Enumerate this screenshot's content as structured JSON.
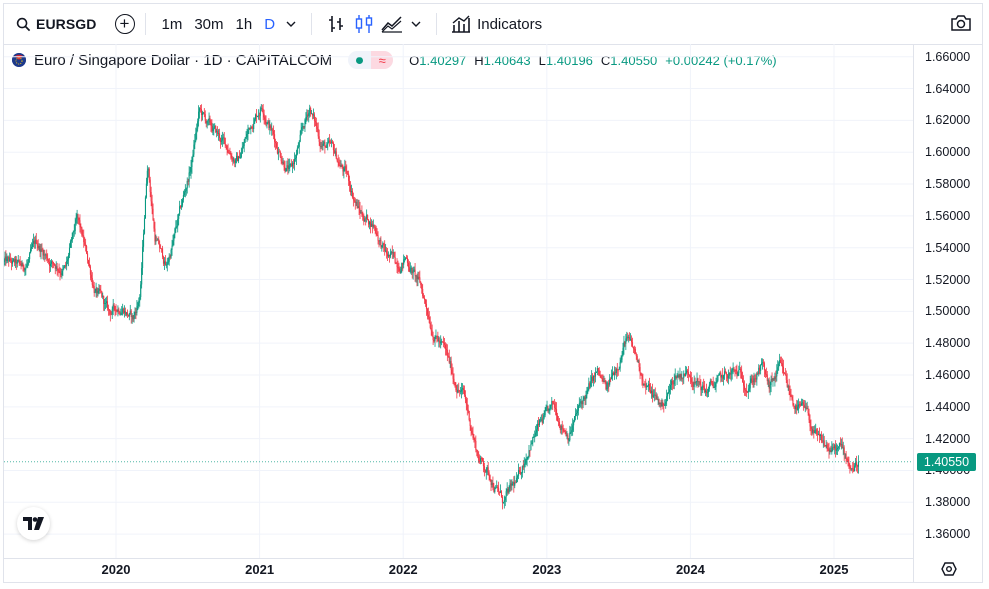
{
  "toolbar": {
    "symbol": "EURSGD",
    "intervals": [
      "1m",
      "30m",
      "1h",
      "D"
    ],
    "active_interval": "D",
    "indicators_label": "Indicators"
  },
  "legend": {
    "title": "Euro / Singapore Dollar · 1D · CAPITALCOM",
    "open_label": "O",
    "open": "1.40297",
    "high_label": "H",
    "high": "1.40643",
    "low_label": "L",
    "low": "1.40196",
    "close_label": "C",
    "close": "1.40550",
    "change": "+0.00242 (+0.17%)"
  },
  "last_price_tag": "1.40550",
  "colors": {
    "up": "#089981",
    "down": "#f23645",
    "grid": "#f0f3fa",
    "accent": "#2962ff"
  },
  "chart_data": {
    "type": "candlestick",
    "interval": "1D",
    "x_ticks": [
      "2020",
      "2021",
      "2022",
      "2023",
      "2024",
      "2025"
    ],
    "y_ticks": [
      "1.36000",
      "1.38000",
      "1.40000",
      "1.42000",
      "1.44000",
      "1.46000",
      "1.48000",
      "1.50000",
      "1.52000",
      "1.54000",
      "1.56000",
      "1.58000",
      "1.60000",
      "1.62000",
      "1.64000",
      "1.66000"
    ],
    "ylim": [
      1.345,
      1.668
    ],
    "xlim": [
      2019.22,
      2025.55
    ],
    "closes": [
      [
        2019.22,
        1.531
      ],
      [
        2019.35,
        1.525
      ],
      [
        2019.45,
        1.541
      ],
      [
        2019.55,
        1.532
      ],
      [
        2019.65,
        1.527
      ],
      [
        2019.73,
        1.555
      ],
      [
        2019.85,
        1.515
      ],
      [
        2019.95,
        1.497
      ],
      [
        2020.05,
        1.505
      ],
      [
        2020.12,
        1.495
      ],
      [
        2020.17,
        1.512
      ],
      [
        2020.22,
        1.595
      ],
      [
        2020.27,
        1.548
      ],
      [
        2020.35,
        1.527
      ],
      [
        2020.45,
        1.562
      ],
      [
        2020.52,
        1.59
      ],
      [
        2020.58,
        1.625
      ],
      [
        2020.65,
        1.615
      ],
      [
        2020.75,
        1.605
      ],
      [
        2020.85,
        1.595
      ],
      [
        2020.95,
        1.62
      ],
      [
        2021.02,
        1.632
      ],
      [
        2021.12,
        1.605
      ],
      [
        2021.22,
        1.588
      ],
      [
        2021.28,
        1.605
      ],
      [
        2021.35,
        1.628
      ],
      [
        2021.42,
        1.608
      ],
      [
        2021.5,
        1.6
      ],
      [
        2021.6,
        1.586
      ],
      [
        2021.7,
        1.562
      ],
      [
        2021.8,
        1.555
      ],
      [
        2021.88,
        1.535
      ],
      [
        2021.95,
        1.53
      ],
      [
        2022.02,
        1.535
      ],
      [
        2022.12,
        1.515
      ],
      [
        2022.2,
        1.492
      ],
      [
        2022.28,
        1.477
      ],
      [
        2022.35,
        1.458
      ],
      [
        2022.42,
        1.448
      ],
      [
        2022.52,
        1.41
      ],
      [
        2022.62,
        1.395
      ],
      [
        2022.7,
        1.38
      ],
      [
        2022.8,
        1.392
      ],
      [
        2022.88,
        1.418
      ],
      [
        2022.95,
        1.428
      ],
      [
        2023.05,
        1.437
      ],
      [
        2023.15,
        1.425
      ],
      [
        2023.25,
        1.443
      ],
      [
        2023.35,
        1.46
      ],
      [
        2023.42,
        1.448
      ],
      [
        2023.5,
        1.47
      ],
      [
        2023.55,
        1.484
      ],
      [
        2023.62,
        1.47
      ],
      [
        2023.7,
        1.452
      ],
      [
        2023.8,
        1.44
      ],
      [
        2023.9,
        1.46
      ],
      [
        2024.0,
        1.463
      ],
      [
        2024.1,
        1.45
      ],
      [
        2024.2,
        1.455
      ],
      [
        2024.3,
        1.46
      ],
      [
        2024.4,
        1.456
      ],
      [
        2024.5,
        1.465
      ],
      [
        2024.55,
        1.45
      ],
      [
        2024.62,
        1.463
      ],
      [
        2024.7,
        1.445
      ],
      [
        2024.8,
        1.435
      ],
      [
        2024.9,
        1.415
      ],
      [
        2024.98,
        1.412
      ],
      [
        2025.05,
        1.412
      ],
      [
        2025.12,
        1.403
      ],
      [
        2025.17,
        1.4055
      ]
    ]
  }
}
